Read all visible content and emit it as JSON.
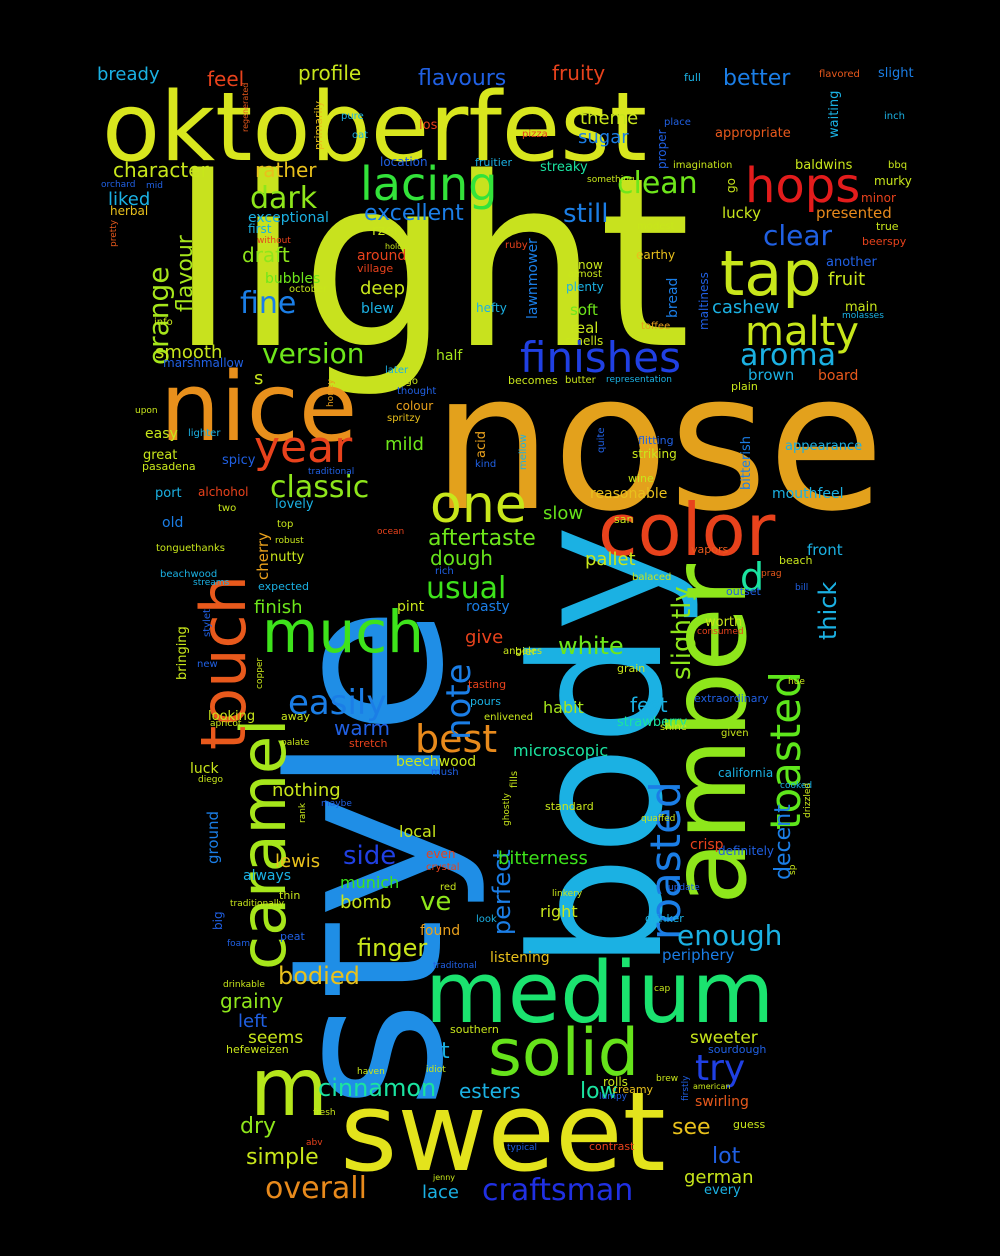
{
  "words": [
    {
      "t": "light",
      "c": "#c8e21e"
    },
    {
      "t": "nose",
      "c": "#e3a11c"
    },
    {
      "t": "style",
      "c": "#1f8ee6"
    },
    {
      "t": "body",
      "c": "#1bb1e3"
    },
    {
      "t": "oktoberfest",
      "c": "#d8e61e"
    },
    {
      "t": "amber",
      "c": "#8ee61b"
    },
    {
      "t": "sweet",
      "c": "#e3e31c"
    },
    {
      "t": "medium",
      "c": "#1be36f"
    },
    {
      "t": "nice",
      "c": "#e8901c"
    },
    {
      "t": "caramel",
      "c": "#a6e61b"
    },
    {
      "t": "touch",
      "c": "#e8591c"
    },
    {
      "t": "color",
      "c": "#e8421c"
    },
    {
      "t": "solid",
      "c": "#66e31b"
    },
    {
      "t": "m",
      "c": "#b6e61b"
    },
    {
      "t": "much",
      "c": "#3ee31b"
    },
    {
      "t": "one",
      "c": "#c8e61b"
    },
    {
      "t": "hops",
      "c": "#e31c1c"
    },
    {
      "t": "tap",
      "c": "#c8e61b"
    },
    {
      "t": "lacing",
      "c": "#33e33a"
    },
    {
      "t": "finishes",
      "c": "#2040e3"
    },
    {
      "t": "roasted",
      "c": "#1b7ee6"
    },
    {
      "t": "toasted",
      "c": "#5ee61b"
    },
    {
      "t": "malty",
      "c": "#c8e61b"
    },
    {
      "t": "year",
      "c": "#e8421c"
    },
    {
      "t": "best",
      "c": "#e88a1c"
    },
    {
      "t": "note",
      "c": "#1b7ee6"
    },
    {
      "t": "d",
      "c": "#1be3a0"
    },
    {
      "t": "easily",
      "c": "#1b7ee6"
    },
    {
      "t": "aroma",
      "c": "#1bb1e3"
    },
    {
      "t": "dark",
      "c": "#8ee61b"
    },
    {
      "t": "clean",
      "c": "#6ee61b"
    },
    {
      "t": "clear",
      "c": "#2060e3"
    },
    {
      "t": "orange",
      "c": "#a6e61b"
    },
    {
      "t": "fine",
      "c": "#1b7ee6"
    },
    {
      "t": "still",
      "c": "#1b7ee6"
    },
    {
      "t": "classic",
      "c": "#8ee61b"
    },
    {
      "t": "usual",
      "c": "#3ee31b"
    },
    {
      "t": "craftsman",
      "c": "#2030e3"
    },
    {
      "t": "overall",
      "c": "#e88a1c"
    },
    {
      "t": "try",
      "c": "#2040e3"
    },
    {
      "t": "enough",
      "c": "#1bb1e3"
    },
    {
      "t": "version",
      "c": "#6ee61b"
    },
    {
      "t": "excellent",
      "c": "#1b7ee6"
    },
    {
      "t": "slightly",
      "c": "#8ee61b"
    },
    {
      "t": "thick",
      "c": "#1bb1e3"
    },
    {
      "t": "decent",
      "c": "#1b7ee6"
    },
    {
      "t": "white",
      "c": "#6ee61b"
    },
    {
      "t": "cinnamon",
      "c": "#1be3a0"
    },
    {
      "t": "finger",
      "c": "#c8e61b"
    },
    {
      "t": "bodied",
      "c": "#e8c01c"
    },
    {
      "t": "flavours",
      "c": "#2060e3"
    },
    {
      "t": "flavour",
      "c": "#a6e61b"
    },
    {
      "t": "character",
      "c": "#c8e61b"
    },
    {
      "t": "rather",
      "c": "#e8c01c"
    },
    {
      "t": "better",
      "c": "#1b7ee6"
    },
    {
      "t": "fruity",
      "c": "#e8421c"
    },
    {
      "t": "profile",
      "c": "#c8e61b"
    },
    {
      "t": "feel",
      "c": "#e8421c"
    },
    {
      "t": "bready",
      "c": "#1bb1e3"
    },
    {
      "t": "theme",
      "c": "#c8e61b"
    },
    {
      "t": "sugar",
      "c": "#1b7ee6"
    },
    {
      "t": "liked",
      "c": "#1bb1e3"
    },
    {
      "t": "draft",
      "c": "#8ee61b"
    },
    {
      "t": "deep",
      "c": "#c8e61b"
    },
    {
      "t": "cashew",
      "c": "#1bb1e3"
    },
    {
      "t": "fruit",
      "c": "#c8e61b"
    },
    {
      "t": "presented",
      "c": "#e88a1c"
    },
    {
      "t": "lucky",
      "c": "#c8e61b"
    },
    {
      "t": "smooth",
      "c": "#c8e61b"
    },
    {
      "t": "s",
      "c": "#c8e61b"
    },
    {
      "t": "brown",
      "c": "#1bb1e3"
    },
    {
      "t": "board",
      "c": "#e8591c"
    },
    {
      "t": "mild",
      "c": "#6ee61b"
    },
    {
      "t": "aftertaste",
      "c": "#6ee61b"
    },
    {
      "t": "slow",
      "c": "#66e31b"
    },
    {
      "t": "dough",
      "c": "#66e31b"
    },
    {
      "t": "pallet",
      "c": "#c8e61b"
    },
    {
      "t": "mouthfeel",
      "c": "#1bb1e3"
    },
    {
      "t": "front",
      "c": "#1bb1e3"
    },
    {
      "t": "finish",
      "c": "#6ee61b"
    },
    {
      "t": "give",
      "c": "#e8421c"
    },
    {
      "t": "fest",
      "c": "#1bb1e3"
    },
    {
      "t": "habit",
      "c": "#a6e61b"
    },
    {
      "t": "warm",
      "c": "#2060e3"
    },
    {
      "t": "nothing",
      "c": "#c8e61b"
    },
    {
      "t": "side",
      "c": "#2040e3"
    },
    {
      "t": "perfect",
      "c": "#1b7ee6"
    },
    {
      "t": "lewis",
      "c": "#e8c01c"
    },
    {
      "t": "bitterness",
      "c": "#3ee31b"
    },
    {
      "t": "ve",
      "c": "#8ee61b"
    },
    {
      "t": "bomb",
      "c": "#c8e61b"
    },
    {
      "t": "munich",
      "c": "#3ee31b"
    },
    {
      "t": "grainy",
      "c": "#8ee61b"
    },
    {
      "t": "left",
      "c": "#2060e3"
    },
    {
      "t": "seems",
      "c": "#c8e61b"
    },
    {
      "t": "t",
      "c": "#1bb1e3"
    },
    {
      "t": "esters",
      "c": "#1bb1e3"
    },
    {
      "t": "low",
      "c": "#1be3a0"
    },
    {
      "t": "dry",
      "c": "#8ee61b"
    },
    {
      "t": "simple",
      "c": "#c8e61b"
    },
    {
      "t": "see",
      "c": "#e8c01c"
    },
    {
      "t": "lot",
      "c": "#2060e3"
    },
    {
      "t": "german",
      "c": "#c8e61b"
    },
    {
      "t": "lace",
      "c": "#1bb1e3"
    },
    {
      "t": "microscopic",
      "c": "#1be3a0"
    },
    {
      "t": "beechwood",
      "c": "#c8e61b"
    },
    {
      "t": "local",
      "c": "#c8e61b"
    },
    {
      "t": "right",
      "c": "#c8e61b"
    },
    {
      "t": "found",
      "c": "#e8a01c"
    },
    {
      "t": "listening",
      "c": "#e8c01c"
    },
    {
      "t": "periphery",
      "c": "#1b7ee6"
    },
    {
      "t": "sweeter",
      "c": "#c8e61b"
    },
    {
      "t": "swirling",
      "c": "#e8591c"
    },
    {
      "t": "ground",
      "c": "#1b7ee6"
    },
    {
      "t": "luck",
      "c": "#c8e61b"
    },
    {
      "t": "always",
      "c": "#1bb1e3"
    },
    {
      "t": "around",
      "c": "#e8421c"
    },
    {
      "t": "exceptional",
      "c": "#1bb1e3"
    },
    {
      "t": "bubbles",
      "c": "#6ee61b"
    },
    {
      "t": "blew",
      "c": "#1bb1e3"
    },
    {
      "t": "rzen",
      "c": "#c8e61b"
    },
    {
      "t": "soft",
      "c": "#6ee61b"
    },
    {
      "t": "real",
      "c": "#c8e61b"
    },
    {
      "t": "half",
      "c": "#a6e61b"
    },
    {
      "t": "main",
      "c": "#c8e61b"
    },
    {
      "t": "another",
      "c": "#2060e3"
    },
    {
      "t": "baldwins",
      "c": "#c8e61b"
    },
    {
      "t": "streaky",
      "c": "#1be3a0"
    },
    {
      "t": "appropriate",
      "c": "#e8591c"
    },
    {
      "t": "bitterish",
      "c": "#1b7ee6"
    },
    {
      "t": "appearance",
      "c": "#1bb1e3"
    },
    {
      "t": "reasonable",
      "c": "#e8c01c"
    },
    {
      "t": "strawberry",
      "c": "#1be3a0"
    },
    {
      "t": "worth",
      "c": "#c8e61b"
    },
    {
      "t": "cherry",
      "c": "#e8a01c"
    },
    {
      "t": "nutty",
      "c": "#c8e61b"
    },
    {
      "t": "bringing",
      "c": "#c8e61b"
    },
    {
      "t": "pint",
      "c": "#c8e61b"
    },
    {
      "t": "roasty",
      "c": "#1b7ee6"
    },
    {
      "t": "looking",
      "c": "#c8e61b"
    },
    {
      "t": "crisp",
      "c": "#e8421c"
    },
    {
      "t": "definitely",
      "c": "#2060e3"
    },
    {
      "t": "lawnmower",
      "c": "#1b7ee6"
    },
    {
      "t": "bread",
      "c": "#1b7ee6"
    },
    {
      "t": "easy",
      "c": "#c8e61b"
    },
    {
      "t": "great",
      "c": "#c8e61b"
    },
    {
      "t": "old",
      "c": "#1b7ee6"
    },
    {
      "t": "port",
      "c": "#1bb1e3"
    },
    {
      "t": "herbal",
      "c": "#e8c01c"
    },
    {
      "t": "first",
      "c": "#1bb1e3"
    },
    {
      "t": "even",
      "c": "#e8421c"
    },
    {
      "t": "village",
      "c": "#e8421c"
    },
    {
      "t": "now",
      "c": "#c8e61b"
    },
    {
      "t": "earthy",
      "c": "#e8c01c"
    },
    {
      "t": "go",
      "c": "#c8e61b"
    },
    {
      "t": "proper",
      "c": "#2060e3"
    },
    {
      "t": "primarily",
      "c": "#e8c01c"
    },
    {
      "t": "waiting",
      "c": "#1bb1e3"
    },
    {
      "t": "slight",
      "c": "#1b7ee6"
    },
    {
      "t": "full",
      "c": "#1bb1e3"
    },
    {
      "t": "flavored",
      "c": "#e8591c"
    },
    {
      "t": "inch",
      "c": "#1bb1e3"
    },
    {
      "t": "los",
      "c": "#e8421c"
    },
    {
      "t": "oat",
      "c": "#1bb1e3"
    },
    {
      "t": "pure",
      "c": "#1bb1e3"
    },
    {
      "t": "regenerated",
      "c": "#e8591c"
    },
    {
      "t": "pizza",
      "c": "#e8421c"
    },
    {
      "t": "place",
      "c": "#2060e3"
    },
    {
      "t": "location",
      "c": "#2060e3"
    },
    {
      "t": "fruitier",
      "c": "#1bb1e3"
    },
    {
      "t": "imagination",
      "c": "#c8e61b"
    },
    {
      "t": "something",
      "c": "#c8e61b"
    },
    {
      "t": "orchard",
      "c": "#2060e3"
    },
    {
      "t": "mid",
      "c": "#2060e3"
    },
    {
      "t": "minor",
      "c": "#e8421c"
    },
    {
      "t": "bbq",
      "c": "#c8e61b"
    },
    {
      "t": "murky",
      "c": "#c8e61b"
    },
    {
      "t": "true",
      "c": "#c8e61b"
    },
    {
      "t": "beerspy",
      "c": "#e8421c"
    },
    {
      "t": "modest",
      "c": "#c8e61b"
    },
    {
      "t": "without",
      "c": "#e8421c"
    },
    {
      "t": "pretty",
      "c": "#e8591c"
    },
    {
      "t": "ruby",
      "c": "#e8421c"
    },
    {
      "t": "almost",
      "c": "#c8e61b"
    },
    {
      "t": "plenty",
      "c": "#1bb1e3"
    },
    {
      "t": "october",
      "c": "#c8e61b"
    },
    {
      "t": "hefty",
      "c": "#1bb1e3"
    },
    {
      "t": "maltiness",
      "c": "#2060e3"
    },
    {
      "t": "info",
      "c": "#c8e61b"
    },
    {
      "t": "marshmallow",
      "c": "#2060e3"
    },
    {
      "t": "toffee",
      "c": "#e8a01c"
    },
    {
      "t": "molasses",
      "c": "#1bb1e3"
    },
    {
      "t": "later",
      "c": "#1bb1e3"
    },
    {
      "t": "eggo",
      "c": "#c8e61b"
    },
    {
      "t": "smells",
      "c": "#c8e61b"
    },
    {
      "t": "representation",
      "c": "#1bb1e3"
    },
    {
      "t": "becomes",
      "c": "#c8e61b"
    },
    {
      "t": "butter",
      "c": "#c8e61b"
    },
    {
      "t": "plain",
      "c": "#c8e61b"
    },
    {
      "t": "thought",
      "c": "#2060e3"
    },
    {
      "t": "upon",
      "c": "#c8e61b"
    },
    {
      "t": "honey",
      "c": "#e8a01c"
    },
    {
      "t": "colour",
      "c": "#e8a01c"
    },
    {
      "t": "spritzy",
      "c": "#e8c01c"
    },
    {
      "t": "lighter",
      "c": "#1bb1e3"
    },
    {
      "t": "acid",
      "c": "#e8a01c"
    },
    {
      "t": "mellow",
      "c": "#1bb1e3"
    },
    {
      "t": "quite",
      "c": "#2060e3"
    },
    {
      "t": "flitting",
      "c": "#2060e3"
    },
    {
      "t": "kind",
      "c": "#2060e3"
    },
    {
      "t": "striking",
      "c": "#c8e61b"
    },
    {
      "t": "wine",
      "c": "#c8e61b"
    },
    {
      "t": "pasadena",
      "c": "#c8e61b"
    },
    {
      "t": "spicy",
      "c": "#2060e3"
    },
    {
      "t": "traditional",
      "c": "#2060e3"
    },
    {
      "t": "alchohol",
      "c": "#e8421c"
    },
    {
      "t": "lovely",
      "c": "#1bb1e3"
    },
    {
      "t": "two",
      "c": "#c8e61b"
    },
    {
      "t": "san",
      "c": "#c8e61b"
    },
    {
      "t": "top",
      "c": "#c8e61b"
    },
    {
      "t": "ocean",
      "c": "#e8421c"
    },
    {
      "t": "vapors",
      "c": "#e8591c"
    },
    {
      "t": "prag",
      "c": "#e8591c"
    },
    {
      "t": "beach",
      "c": "#c8e61b"
    },
    {
      "t": "tonguethanks",
      "c": "#c8e61b"
    },
    {
      "t": "robust",
      "c": "#c8e61b"
    },
    {
      "t": "rich",
      "c": "#2060e3"
    },
    {
      "t": "balaced",
      "c": "#c8e61b"
    },
    {
      "t": "beachwood",
      "c": "#1bb1e3"
    },
    {
      "t": "streams",
      "c": "#1bb1e3"
    },
    {
      "t": "expected",
      "c": "#1bb1e3"
    },
    {
      "t": "outset",
      "c": "#2060e3"
    },
    {
      "t": "bill",
      "c": "#2060e3"
    },
    {
      "t": "stylet",
      "c": "#2060e3"
    },
    {
      "t": "bier",
      "c": "#c8e61b"
    },
    {
      "t": "consumed",
      "c": "#e8421c"
    },
    {
      "t": "angeles",
      "c": "#c8e61b"
    },
    {
      "t": "grain",
      "c": "#c8e61b"
    },
    {
      "t": "new",
      "c": "#2060e3"
    },
    {
      "t": "copper",
      "c": "#c8e61b"
    },
    {
      "t": "tasting",
      "c": "#e8421c"
    },
    {
      "t": "hue",
      "c": "#c8e61b"
    },
    {
      "t": "pours",
      "c": "#1bb1e3"
    },
    {
      "t": "extraordinary",
      "c": "#2060e3"
    },
    {
      "t": "apricot",
      "c": "#c8e61b"
    },
    {
      "t": "away",
      "c": "#c8e61b"
    },
    {
      "t": "enlivened",
      "c": "#c8e61b"
    },
    {
      "t": "shine",
      "c": "#c8e61b"
    },
    {
      "t": "given",
      "c": "#c8e61b"
    },
    {
      "t": "palate",
      "c": "#c8e61b"
    },
    {
      "t": "stretch",
      "c": "#e8421c"
    },
    {
      "t": "diego",
      "c": "#c8e61b"
    },
    {
      "t": "mush",
      "c": "#2060e3"
    },
    {
      "t": "fills",
      "c": "#c8e61b"
    },
    {
      "t": "california",
      "c": "#1bb1e3"
    },
    {
      "t": "cooked",
      "c": "#1bb1e3"
    },
    {
      "t": "maybe",
      "c": "#2060e3"
    },
    {
      "t": "rank",
      "c": "#c8e61b"
    },
    {
      "t": "ghostly",
      "c": "#c8e61b"
    },
    {
      "t": "standard",
      "c": "#c8e61b"
    },
    {
      "t": "quaffed",
      "c": "#c8e61b"
    },
    {
      "t": "drizzled",
      "c": "#c8e61b"
    },
    {
      "t": "crystal",
      "c": "#e8421c"
    },
    {
      "t": "sp",
      "c": "#c8e61b"
    },
    {
      "t": "thin",
      "c": "#c8e61b"
    },
    {
      "t": "traditionally",
      "c": "#c8e61b"
    },
    {
      "t": "red",
      "c": "#c8e61b"
    },
    {
      "t": "linkery",
      "c": "#c8e61b"
    },
    {
      "t": "update",
      "c": "#2060e3"
    },
    {
      "t": "big",
      "c": "#2060e3"
    },
    {
      "t": "foam",
      "c": "#2060e3"
    },
    {
      "t": "peat",
      "c": "#2060e3"
    },
    {
      "t": "look",
      "c": "#1bb1e3"
    },
    {
      "t": "drinker",
      "c": "#1bb1e3"
    },
    {
      "t": "traditonal",
      "c": "#2060e3"
    },
    {
      "t": "drinkable",
      "c": "#c8e61b"
    },
    {
      "t": "cap",
      "c": "#c8e61b"
    },
    {
      "t": "southern",
      "c": "#c8e61b"
    },
    {
      "t": "hefeweizen",
      "c": "#c8e61b"
    },
    {
      "t": "haven",
      "c": "#c8e61b"
    },
    {
      "t": "idiot",
      "c": "#c8e61b"
    },
    {
      "t": "rolls",
      "c": "#c8e61b"
    },
    {
      "t": "brew",
      "c": "#c8e61b"
    },
    {
      "t": "sourdough",
      "c": "#2060e3"
    },
    {
      "t": "creamy",
      "c": "#e8c01c"
    },
    {
      "t": "lumpy",
      "c": "#2060e3"
    },
    {
      "t": "firstly",
      "c": "#2060e3"
    },
    {
      "t": "fresh",
      "c": "#c8e61b"
    },
    {
      "t": "guess",
      "c": "#c8e61b"
    },
    {
      "t": "typical",
      "c": "#2060e3"
    },
    {
      "t": "contrast",
      "c": "#e8421c"
    },
    {
      "t": "abv",
      "c": "#e8421c"
    },
    {
      "t": "jenny",
      "c": "#c8e61b"
    },
    {
      "t": "every",
      "c": "#1bb1e3"
    },
    {
      "t": "american",
      "c": "#c8e61b"
    },
    {
      "t": "holds",
      "c": "#c8e61b"
    }
  ]
}
